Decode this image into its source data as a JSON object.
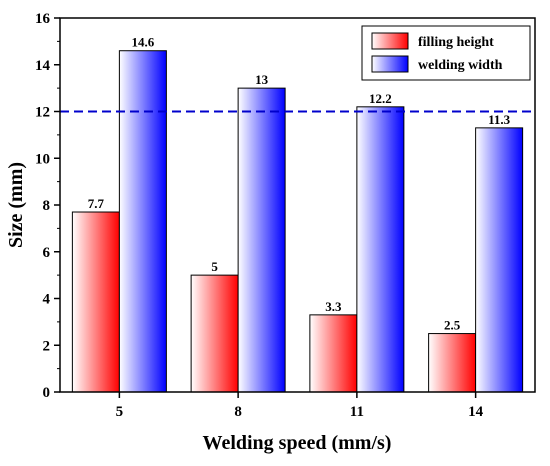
{
  "chart_data": {
    "type": "bar",
    "categories": [
      "5",
      "8",
      "11",
      "14"
    ],
    "series": [
      {
        "name": "filling height",
        "values": [
          7.7,
          5,
          3.3,
          2.5
        ],
        "labels": [
          "7.7",
          "5",
          "3.3",
          "2.5"
        ],
        "color": "#ff0000"
      },
      {
        "name": "welding width",
        "values": [
          14.6,
          13,
          12.2,
          11.3
        ],
        "labels": [
          "14.6",
          "13",
          "12.2",
          "11.3"
        ],
        "color": "#0000ff"
      }
    ],
    "xlabel": "Welding speed (mm/s)",
    "ylabel": "Size (mm)",
    "ylim": [
      0,
      16
    ],
    "yticks": [
      0,
      2,
      4,
      6,
      8,
      10,
      12,
      14,
      16
    ],
    "reference_line": {
      "y": 12,
      "style": "dashed",
      "color": "#0000cc"
    },
    "legend_position": "top-right",
    "grid": false
  }
}
